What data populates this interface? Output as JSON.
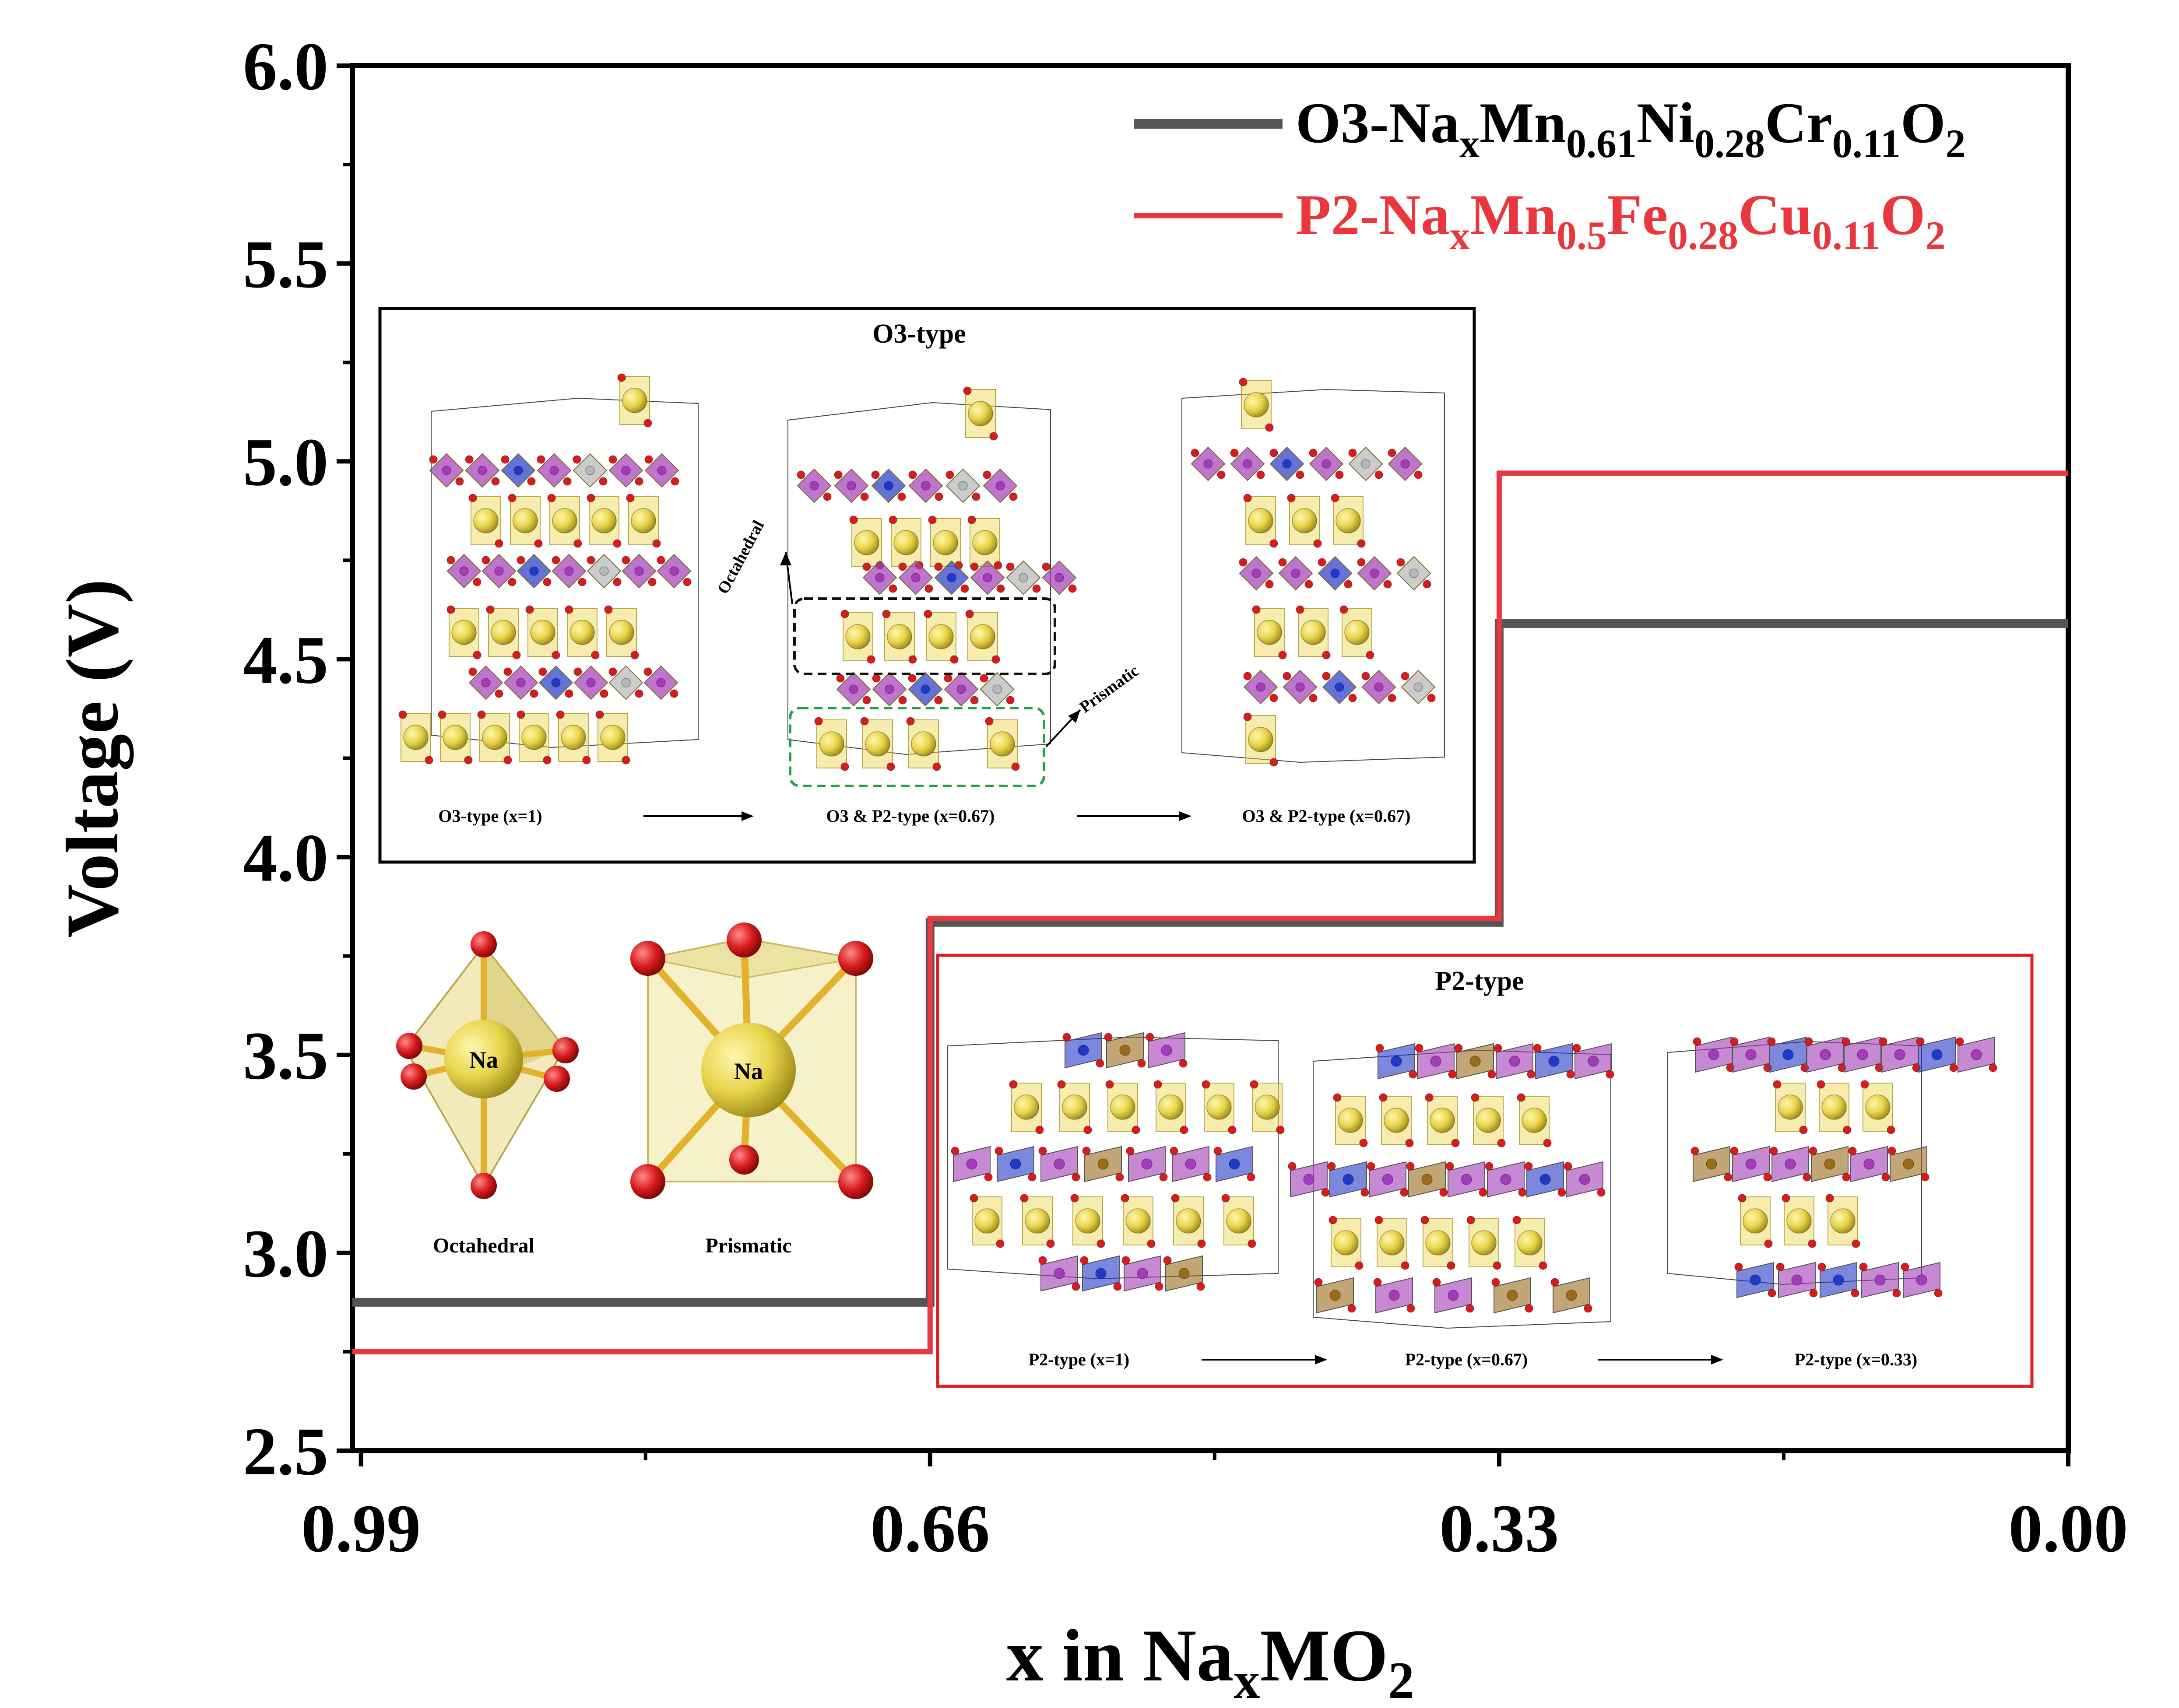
{
  "chart_data": {
    "type": "line",
    "step": true,
    "title": "",
    "xlabel": "x in NaₓMO₂",
    "xlabel_parts": {
      "base": "x in Na",
      "sub": "x",
      "mid": "MO",
      "sub2": "2"
    },
    "ylabel": "Voltage (V)",
    "xlim": [
      0.995,
      0.0
    ],
    "ylim": [
      2.5,
      6.0
    ],
    "x_ticks": [
      0.99,
      0.66,
      0.33,
      0.0
    ],
    "x_tick_labels": [
      "0.99",
      "0.66",
      "0.33",
      "0.00"
    ],
    "x_minor_ticks": [
      0.825,
      0.495,
      0.165
    ],
    "y_ticks": [
      2.5,
      3.0,
      3.5,
      4.0,
      4.5,
      5.0,
      5.5,
      6.0
    ],
    "y_tick_labels": [
      "2.5",
      "3.0",
      "3.5",
      "4.0",
      "4.5",
      "5.0",
      "5.5",
      "6.0"
    ],
    "y_minor_ticks": [
      2.75,
      3.25,
      3.75,
      4.25,
      4.75,
      5.25,
      5.75
    ],
    "legend_position": "top-right",
    "series": [
      {
        "name": "O3-NaₓMn₀.₆₁Ni₀.₂₈Cr₀.₁₁O₂",
        "color": "#555555",
        "legend_parts": [
          {
            "t": "O3-Na",
            "s": false
          },
          {
            "t": "x",
            "s": true
          },
          {
            "t": "Mn",
            "s": false
          },
          {
            "t": "0.61",
            "s": true
          },
          {
            "t": "Ni",
            "s": false
          },
          {
            "t": "0.28",
            "s": true
          },
          {
            "t": "Cr",
            "s": false
          },
          {
            "t": "0.11",
            "s": true
          },
          {
            "t": "O",
            "s": false
          },
          {
            "t": "2",
            "s": true
          }
        ],
        "points": [
          {
            "x": 0.995,
            "y": 2.875
          },
          {
            "x": 0.66,
            "y": 2.875
          },
          {
            "x": 0.66,
            "y": 3.835
          },
          {
            "x": 0.33,
            "y": 3.835
          },
          {
            "x": 0.33,
            "y": 4.59
          },
          {
            "x": 0.0,
            "y": 4.59
          }
        ]
      },
      {
        "name": "P2-NaₓMn₀.₅Fe₀.₂₈Cu₀.₁₁O₂",
        "color": "#e8383d",
        "legend_parts": [
          {
            "t": "P2-Na",
            "s": false
          },
          {
            "t": "x",
            "s": true
          },
          {
            "t": "Mn",
            "s": false
          },
          {
            "t": "0.5",
            "s": true
          },
          {
            "t": "Fe",
            "s": false
          },
          {
            "t": "0.28",
            "s": true
          },
          {
            "t": "Cu",
            "s": false
          },
          {
            "t": "0.11",
            "s": true
          },
          {
            "t": "O",
            "s": false
          },
          {
            "t": "2",
            "s": true
          }
        ],
        "points": [
          {
            "x": 0.995,
            "y": 2.75
          },
          {
            "x": 0.66,
            "y": 2.75
          },
          {
            "x": 0.66,
            "y": 3.845
          },
          {
            "x": 0.33,
            "y": 3.845
          },
          {
            "x": 0.33,
            "y": 4.97
          },
          {
            "x": 0.0,
            "y": 4.97
          }
        ]
      }
    ]
  },
  "insets": {
    "o3": {
      "title": "O3-type",
      "stages": [
        "O3-type (x=1)",
        "O3 & P2-type (x=0.67)",
        "O3 & P2-type (x=0.67)"
      ],
      "annotations": [
        "Octahedral",
        "Prismatic"
      ]
    },
    "p2": {
      "title": "P2-type",
      "stages": [
        "P2-type (x=1)",
        "P2-type (x=0.67)",
        "P2-type (x=0.33)"
      ]
    },
    "coordination": {
      "octahedral": {
        "atom": "Na",
        "label": "Octahedral"
      },
      "prismatic": {
        "atom": "Na",
        "label": "Prismatic"
      }
    }
  },
  "colors": {
    "na_sodium": "#e8d44a",
    "oxygen": "#d81c1c",
    "mn_purple": "#a43bb8",
    "ni_blue": "#2338c8",
    "cr_gray": "#b7b7b7",
    "cu_bronze": "#9a6b1a",
    "o3_frame": "#000000",
    "p2_frame": "#e02020"
  }
}
